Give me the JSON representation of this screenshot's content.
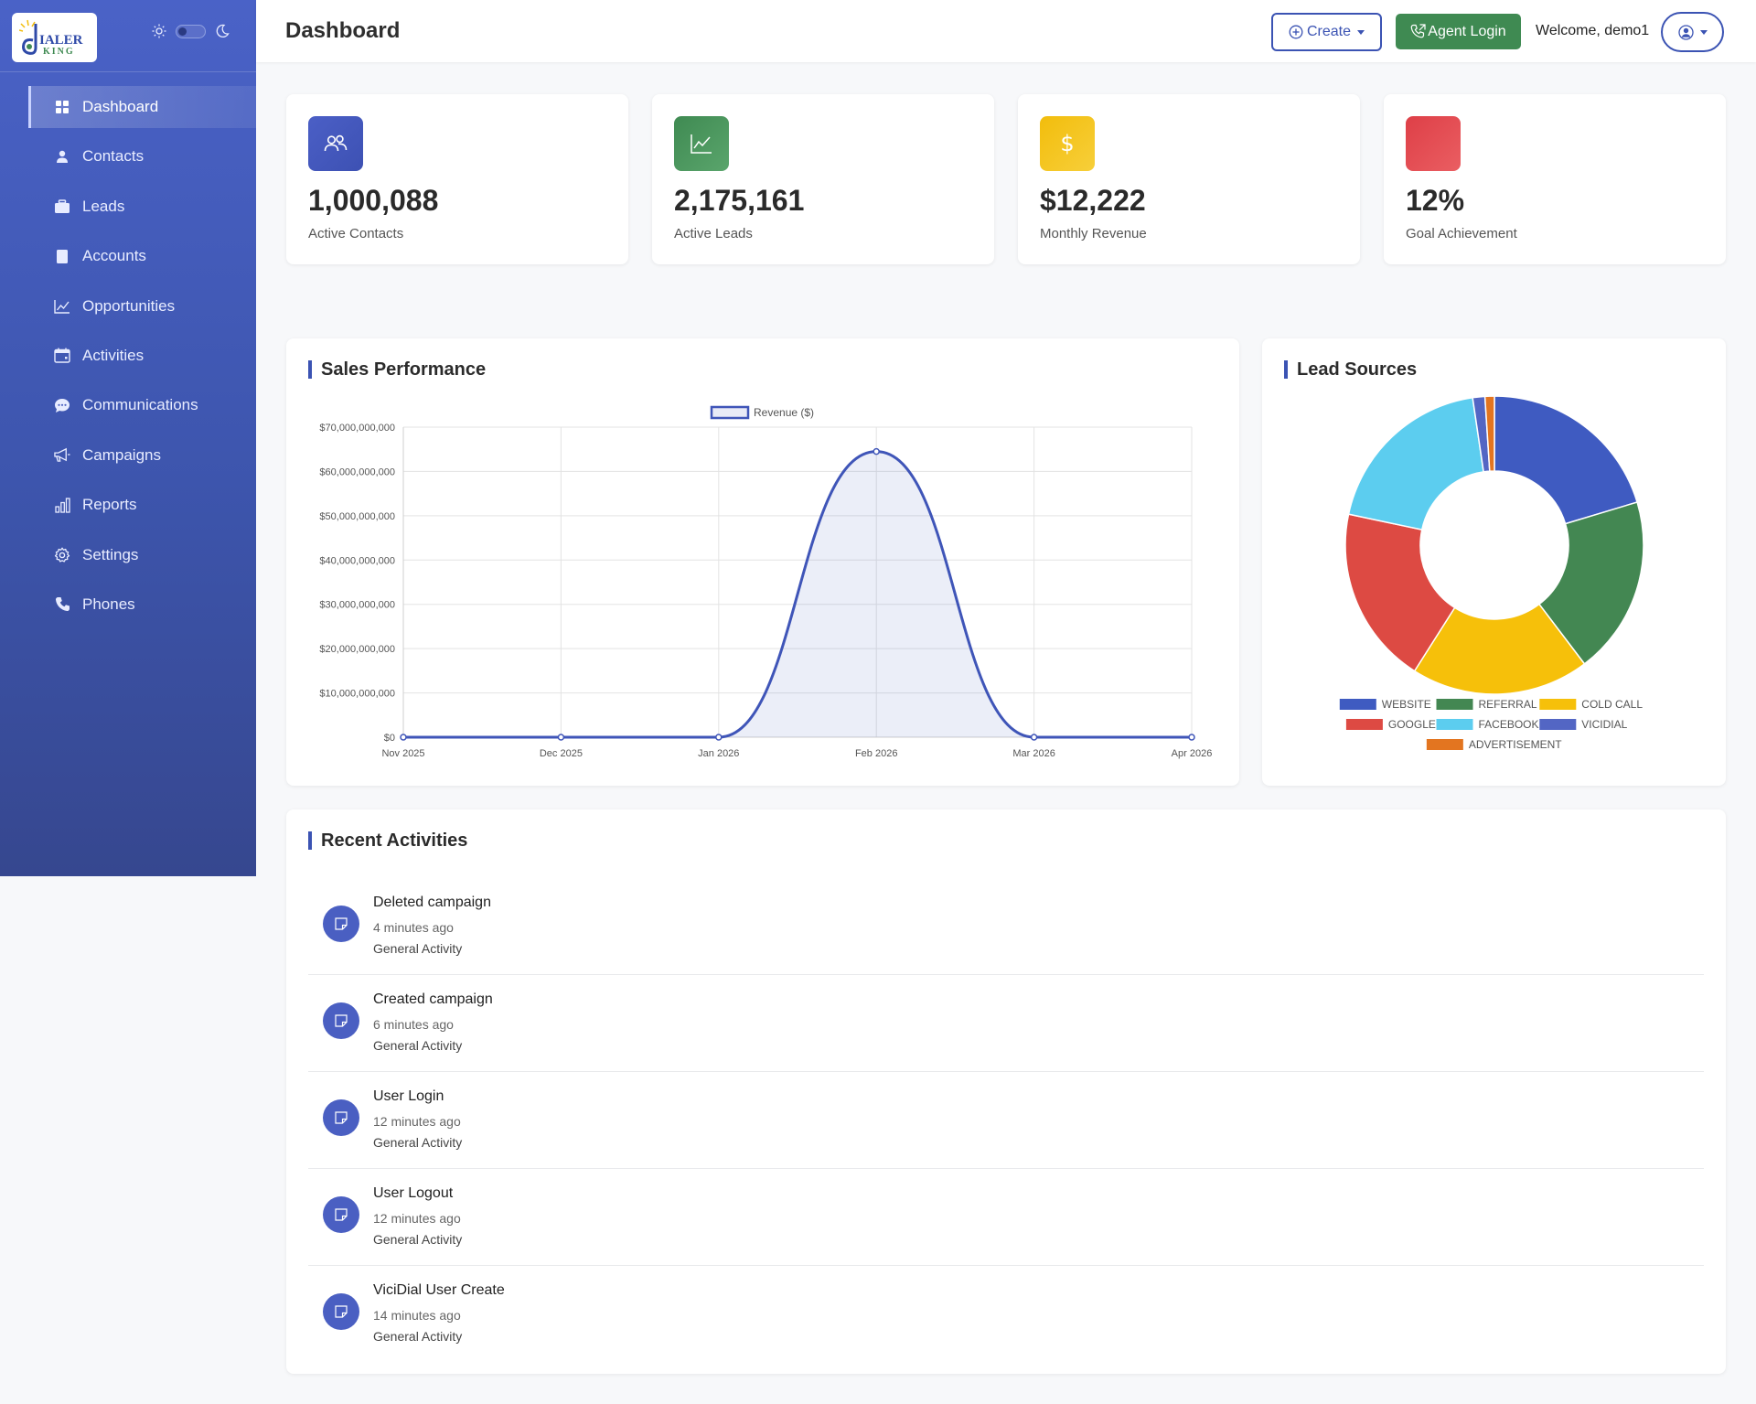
{
  "header": {
    "title": "Dashboard",
    "create_label": "Create",
    "agent_login_label": "Agent Login",
    "welcome_text": "Welcome, demo1"
  },
  "sidebar": {
    "logo_text_top": "IALER",
    "logo_text_bottom": "KING",
    "items": [
      {
        "label": "Dashboard",
        "icon": "grid-icon",
        "active": true
      },
      {
        "label": "Contacts",
        "icon": "person-icon"
      },
      {
        "label": "Leads",
        "icon": "briefcase-icon"
      },
      {
        "label": "Accounts",
        "icon": "book-icon"
      },
      {
        "label": "Opportunities",
        "icon": "line-chart-icon"
      },
      {
        "label": "Activities",
        "icon": "calendar-icon"
      },
      {
        "label": "Communications",
        "icon": "chat-icon"
      },
      {
        "label": "Campaigns",
        "icon": "megaphone-icon"
      },
      {
        "label": "Reports",
        "icon": "bar-chart-icon"
      },
      {
        "label": "Settings",
        "icon": "gear-icon"
      },
      {
        "label": "Phones",
        "icon": "phone-icon"
      }
    ]
  },
  "stats": [
    {
      "value": "1,000,088",
      "label": "Active Contacts",
      "icon": "users-icon",
      "color": "#4b5fc6"
    },
    {
      "value": "2,175,161",
      "label": "Active Leads",
      "icon": "trend-icon",
      "color": "#3f8a52"
    },
    {
      "value": "$12,222",
      "label": "Monthly Revenue",
      "icon": "dollar-icon",
      "color": "#f2bd0c"
    },
    {
      "value": "12%",
      "label": "Goal Achievement",
      "icon": "target-icon",
      "color": "#e0434b"
    }
  ],
  "sales": {
    "title": "Sales Performance"
  },
  "lead_sources": {
    "title": "Lead Sources"
  },
  "chart_data": [
    {
      "type": "line",
      "title": "Sales Performance",
      "categories": [
        "Nov 2025",
        "Dec 2025",
        "Jan 2026",
        "Feb 2026",
        "Mar 2026",
        "Apr 2026"
      ],
      "series": [
        {
          "name": "Revenue ($)",
          "values": [
            0,
            0,
            0,
            64500000000,
            0,
            0
          ],
          "color": "#3f55b8"
        }
      ],
      "ylim": [
        0,
        70000000000
      ],
      "yticks": [
        "$0",
        "$10,000,000,000",
        "$20,000,000,000",
        "$30,000,000,000",
        "$40,000,000,000",
        "$50,000,000,000",
        "$60,000,000,000",
        "$70,000,000,000"
      ],
      "grid": true,
      "fill": true,
      "legend": "top"
    },
    {
      "type": "pie",
      "title": "Lead Sources",
      "donut": true,
      "categories": [
        "WEBSITE",
        "REFERRAL",
        "COLD CALL",
        "GOOGLE",
        "FACEBOOK",
        "VICIDIAL",
        "ADVERTISEMENT"
      ],
      "values": [
        20,
        19,
        19,
        19,
        19,
        1.3,
        1.0
      ],
      "colors": [
        "#3f5bc1",
        "#438752",
        "#f6c00a",
        "#dd4a43",
        "#5ccdef",
        "#5366c4",
        "#e37520"
      ],
      "legend": "bottom"
    }
  ],
  "activities": {
    "title": "Recent Activities",
    "items": [
      {
        "title": "Deleted campaign",
        "time": "4 minutes ago",
        "type": "General Activity"
      },
      {
        "title": "Created campaign",
        "time": "6 minutes ago",
        "type": "General Activity"
      },
      {
        "title": "User Login",
        "time": "12 minutes ago",
        "type": "General Activity"
      },
      {
        "title": "User Logout",
        "time": "12 minutes ago",
        "type": "General Activity"
      },
      {
        "title": "ViciDial User Create",
        "time": "14 minutes ago",
        "type": "General Activity"
      }
    ]
  }
}
